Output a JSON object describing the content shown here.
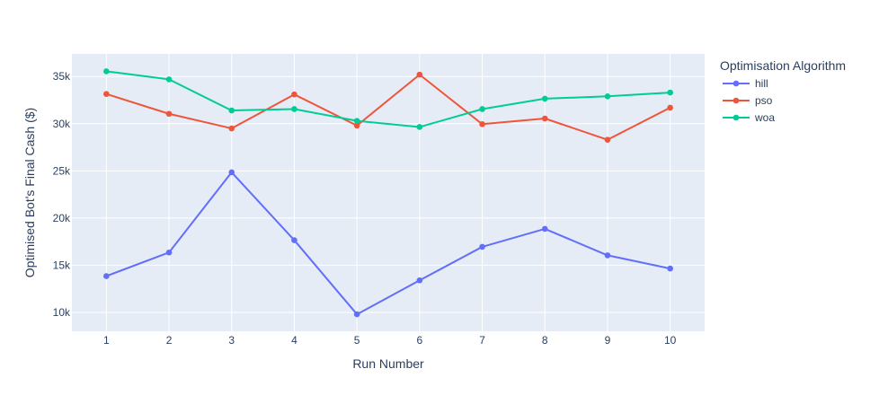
{
  "chart_data": {
    "type": "line",
    "title": "",
    "xlabel": "Run Number",
    "ylabel": "Optimised Bot's Final Cash ($)",
    "x": [
      1,
      2,
      3,
      4,
      5,
      6,
      7,
      8,
      9,
      10
    ],
    "xlim": [
      0.45,
      10.55
    ],
    "ylim": [
      8000,
      37400
    ],
    "x_ticks": [
      "1",
      "2",
      "3",
      "4",
      "5",
      "6",
      "7",
      "8",
      "9",
      "10"
    ],
    "y_ticks": [
      {
        "value": 10000,
        "label": "10k"
      },
      {
        "value": 15000,
        "label": "15k"
      },
      {
        "value": 20000,
        "label": "20k"
      },
      {
        "value": 25000,
        "label": "25k"
      },
      {
        "value": 30000,
        "label": "30k"
      },
      {
        "value": 35000,
        "label": "35k"
      }
    ],
    "grid": true,
    "legend": {
      "title": "Optimisation Algorithm",
      "placement": "right"
    },
    "series": [
      {
        "name": "hill",
        "color": "#636efa",
        "values": [
          13850,
          16350,
          24850,
          17650,
          9800,
          13400,
          16950,
          18850,
          16050,
          14650
        ]
      },
      {
        "name": "pso",
        "color": "#ef553b",
        "values": [
          33150,
          31050,
          29500,
          33100,
          29800,
          35200,
          29950,
          30550,
          28300,
          31700
        ]
      },
      {
        "name": "woa",
        "color": "#00cc96",
        "values": [
          35550,
          34700,
          31400,
          31550,
          30300,
          29650,
          31550,
          32650,
          32900,
          33300
        ]
      }
    ]
  }
}
